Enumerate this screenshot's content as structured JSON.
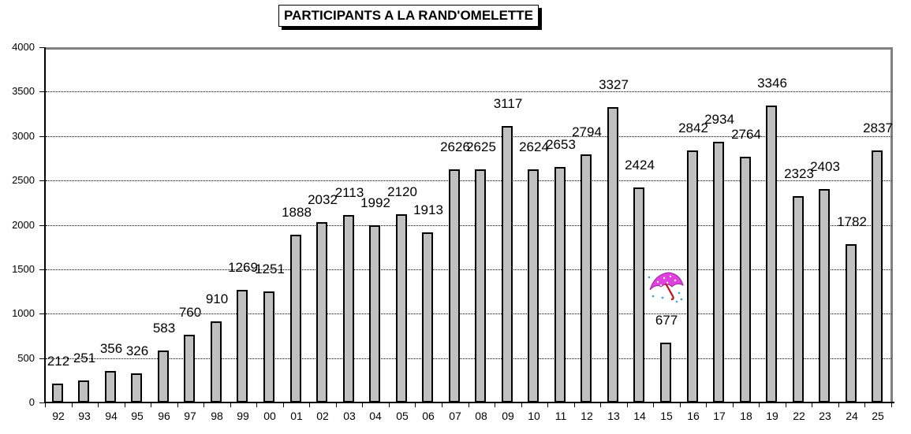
{
  "chart_data": {
    "type": "bar",
    "title": "PARTICIPANTS A LA RAND'OMELETTE",
    "xlabel": "",
    "ylabel": "",
    "ylim": [
      0,
      4000
    ],
    "yticks": [
      "0",
      "500",
      "1000",
      "1500",
      "2000",
      "2500",
      "3000",
      "3500",
      "4000"
    ],
    "grid": true,
    "legend": null,
    "categories": [
      "92",
      "93",
      "94",
      "95",
      "96",
      "97",
      "98",
      "99",
      "00",
      "01",
      "02",
      "03",
      "04",
      "05",
      "06",
      "07",
      "08",
      "09",
      "10",
      "11",
      "12",
      "13",
      "14",
      "15",
      "16",
      "17",
      "18",
      "19",
      "22",
      "23",
      "24",
      "25"
    ],
    "values": [
      212,
      251,
      356,
      326,
      583,
      760,
      910,
      1269,
      1251,
      1888,
      2032,
      2113,
      1992,
      2120,
      1913,
      2626,
      2625,
      3117,
      2624,
      2653,
      2794,
      3327,
      2424,
      677,
      2842,
      2934,
      2764,
      3346,
      2323,
      2403,
      1782,
      2837
    ],
    "labels": [
      "212",
      "251",
      "356",
      "326",
      "583",
      "760",
      "910",
      "1269",
      "1251",
      "1888",
      "2032",
      "2113",
      "1992",
      "2120",
      "1913",
      "2626",
      "2625",
      "3117",
      "2624",
      "2653",
      "2794",
      "3327",
      "2424",
      "677",
      "2842",
      "2934",
      "2764",
      "3346",
      "2323",
      "2403",
      "1782",
      "2837"
    ],
    "annotations": [
      {
        "category": "15",
        "icon": "umbrella-rain-icon",
        "meaning": "rainy year"
      }
    ],
    "bar_color": "#c0c0c0",
    "bar_edge_color": "#000000"
  }
}
